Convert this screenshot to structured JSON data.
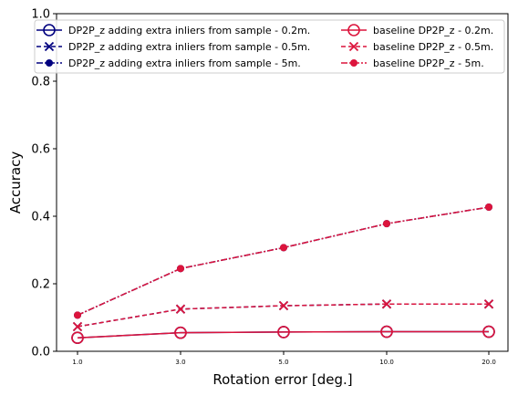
{
  "chart_data": {
    "type": "line",
    "title": "",
    "xlabel": "Rotation error [deg.]",
    "ylabel": "Accuracy",
    "categories": [
      "1.0",
      "3.0",
      "5.0",
      "10.0",
      "20.0"
    ],
    "ylim": [
      0,
      1.0
    ],
    "yticks": [
      "0.0",
      "0.2",
      "0.4",
      "0.6",
      "0.8",
      "1.0"
    ],
    "grid": false,
    "legend_position": "top",
    "series": [
      {
        "name": "DP2P_z adding extra inliers from sample - 0.2m.",
        "values": [
          0.04,
          0.055,
          0.057,
          0.058,
          0.058
        ],
        "color": "#00007f",
        "linestyle": "solid",
        "marker": "circle-open"
      },
      {
        "name": "DP2P_z adding extra inliers from sample - 0.5m.",
        "values": [
          0.073,
          0.125,
          0.135,
          0.14,
          0.14
        ],
        "color": "#00007f",
        "linestyle": "dashed",
        "marker": "x"
      },
      {
        "name": "DP2P_z adding extra inliers from sample - 5m.",
        "values": [
          0.107,
          0.245,
          0.307,
          0.378,
          0.427
        ],
        "color": "#00007f",
        "linestyle": "dashdot",
        "marker": "dot"
      },
      {
        "name": "baseline DP2P_z - 0.2m.",
        "values": [
          0.04,
          0.055,
          0.057,
          0.058,
          0.058
        ],
        "color": "#dc143c",
        "linestyle": "solid",
        "marker": "circle-open"
      },
      {
        "name": "baseline DP2P_z - 0.5m.",
        "values": [
          0.073,
          0.125,
          0.135,
          0.14,
          0.14
        ],
        "color": "#dc143c",
        "linestyle": "dashed",
        "marker": "x"
      },
      {
        "name": "baseline DP2P_z - 5m.",
        "values": [
          0.107,
          0.245,
          0.307,
          0.378,
          0.427
        ],
        "color": "#dc143c",
        "linestyle": "dashdot",
        "marker": "dot"
      }
    ]
  }
}
